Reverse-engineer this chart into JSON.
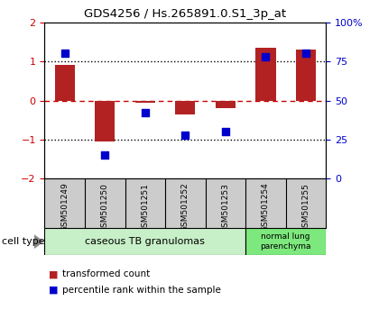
{
  "title": "GDS4256 / Hs.265891.0.S1_3p_at",
  "samples": [
    "GSM501249",
    "GSM501250",
    "GSM501251",
    "GSM501252",
    "GSM501253",
    "GSM501254",
    "GSM501255"
  ],
  "transformed_counts": [
    0.9,
    -1.05,
    -0.05,
    -0.35,
    -0.2,
    1.35,
    1.3
  ],
  "percentile_ranks": [
    80,
    15,
    42,
    28,
    30,
    78,
    80
  ],
  "ylim": [
    -2,
    2
  ],
  "yticks_left": [
    -2,
    -1,
    0,
    1,
    2
  ],
  "yticks_right": [
    0,
    25,
    50,
    75,
    100
  ],
  "bar_color": "#b22222",
  "dot_color": "#0000cc",
  "zero_line_color": "#cc0000",
  "dotted_line_color": "#000000",
  "group1_indices": [
    0,
    1,
    2,
    3,
    4
  ],
  "group2_indices": [
    5,
    6
  ],
  "group1_label": "caseous TB granulomas",
  "group2_label": "normal lung\nparenchyma",
  "group1_color": "#c8f0c8",
  "group2_color": "#7de87d",
  "cell_type_label": "cell type",
  "legend_items": [
    {
      "color": "#b22222",
      "label": "transformed count"
    },
    {
      "color": "#0000cc",
      "label": "percentile rank within the sample"
    }
  ],
  "background_color": "#ffffff",
  "sample_box_color": "#cccccc",
  "bar_width": 0.5
}
